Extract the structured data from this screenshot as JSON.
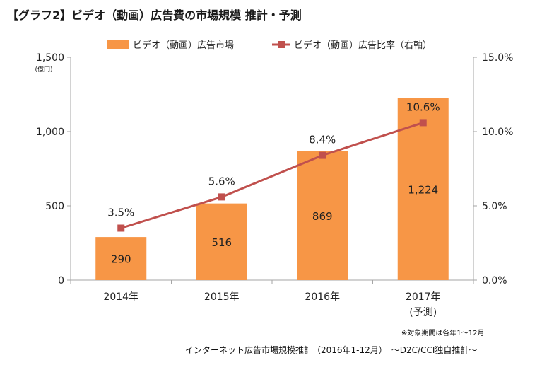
{
  "title": "【グラフ2】ビデオ（動画）広告費の市場規模 推計・予測",
  "notes": {
    "period": "※対象期間は各年1～12月",
    "source": "インターネット広告市場規模推計（2016年1-12月）　～D2C/CCI独自推計～"
  },
  "colors": {
    "bar": "#f79646",
    "line": "#c0504d",
    "axis": "#a6a6a6",
    "text": "#222222"
  },
  "chart_data": {
    "type": "bar",
    "categories": [
      "2014年",
      "2015年",
      "2016年",
      "2017年"
    ],
    "category_sublabels": [
      "",
      "",
      "",
      "(予測)"
    ],
    "series": [
      {
        "name": "ビデオ（動画）広告市場",
        "type": "bar",
        "axis": "left",
        "values": [
          290,
          516,
          869,
          1224
        ],
        "labels": [
          "290",
          "516",
          "869",
          "1,224"
        ]
      },
      {
        "name": "ビデオ（動画）広告比率（右軸）",
        "type": "line",
        "axis": "right",
        "values": [
          3.5,
          5.6,
          8.4,
          10.6
        ],
        "labels": [
          "3.5%",
          "5.6%",
          "8.4%",
          "10.6%"
        ]
      }
    ],
    "y_left": {
      "unit": "(億円)",
      "ylim": [
        0,
        1500
      ],
      "ticks": [
        0,
        500,
        1000,
        1500
      ],
      "tick_labels": [
        "0",
        "500",
        "1,000",
        "1,500"
      ]
    },
    "y_right": {
      "ylim": [
        0,
        15
      ],
      "ticks": [
        0,
        5,
        10,
        15
      ],
      "tick_labels": [
        "0.0%",
        "5.0%",
        "10.0%",
        "15.0%"
      ]
    },
    "grid": false,
    "legend": "top-center"
  }
}
